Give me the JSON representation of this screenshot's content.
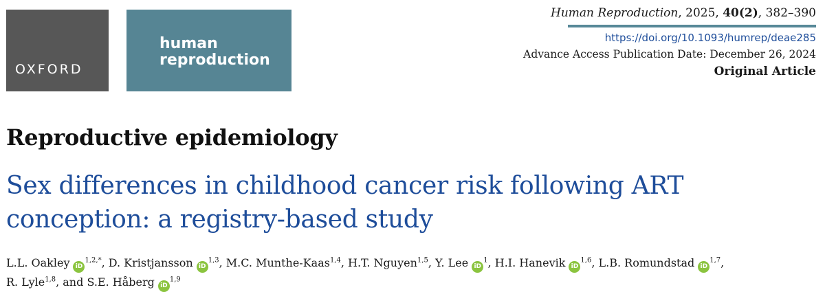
{
  "logos": {
    "oxford": "OXFORD",
    "journal_line1": "human",
    "journal_line2": "reproduction"
  },
  "header": {
    "journal_name": "Human Reproduction",
    "journal_rest": ", 2025, ",
    "volume": "40(2)",
    "pages": ", 382–390",
    "doi": "https://doi.org/10.1093/humrep/deae285",
    "publication_date": "Advance Access Publication Date: December 26, 2024",
    "article_type": "Original Article"
  },
  "section": "Reproductive epidemiology",
  "title_line1": "Sex differences in childhood cancer risk following ART",
  "title_line2": "conception: a registry-based study",
  "orcid_label": "iD",
  "authors": [
    {
      "name": "L.L. Oakley",
      "affil": "1,2,*",
      "sep": ", "
    },
    {
      "name": "D. Kristjansson",
      "affil": "1,3",
      "sep": ", "
    },
    {
      "name": "M.C. Munthe-Kaas",
      "affil": "1,4",
      "sep": ", "
    },
    {
      "name": "H.T. Nguyen",
      "affil": "1,5",
      "sep": ", "
    },
    {
      "name": "Y. Lee",
      "affil": "1",
      "sep": ", "
    },
    {
      "name": "H.I. Hanevik",
      "affil": "1,6",
      "sep": ", "
    },
    {
      "name": "L.B. Romundstad",
      "affil": "1,7",
      "sep": ","
    },
    {
      "name": "R. Lyle",
      "affil": "1,8",
      "sep": ", and "
    },
    {
      "name": "S.E. Håberg",
      "affil": "1,9",
      "sep": ""
    }
  ]
}
